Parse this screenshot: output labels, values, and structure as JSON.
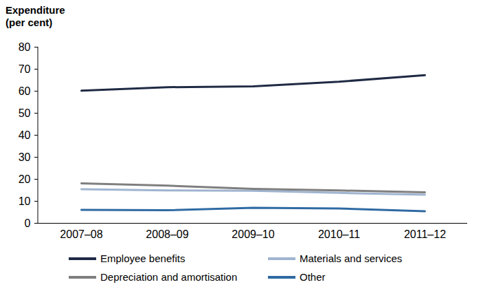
{
  "chart_data": {
    "type": "line",
    "y_label": "Expenditure (per cent)",
    "categories": [
      "2007–08",
      "2008–09",
      "2009–10",
      "2010–11",
      "2011–12"
    ],
    "series": [
      {
        "name": "Employee benefits",
        "color": "#1f2a44",
        "values": [
          60.2,
          61.8,
          62.2,
          64.3,
          67.3
        ]
      },
      {
        "name": "Materials and services",
        "color": "#9fb4d0",
        "values": [
          15.5,
          14.9,
          14.8,
          13.8,
          13.0
        ]
      },
      {
        "name": "Depreciation and amortisation",
        "color": "#7f7f7f",
        "values": [
          18.1,
          17.1,
          15.6,
          14.9,
          14.1
        ]
      },
      {
        "name": "Other",
        "color": "#2f6aa3",
        "values": [
          6.1,
          5.9,
          7.0,
          6.7,
          5.5
        ]
      }
    ],
    "ylim": [
      0,
      80
    ],
    "yticks": [
      0,
      10,
      20,
      30,
      40,
      50,
      60,
      70,
      80
    ],
    "grid": false,
    "legend": "bottom"
  }
}
